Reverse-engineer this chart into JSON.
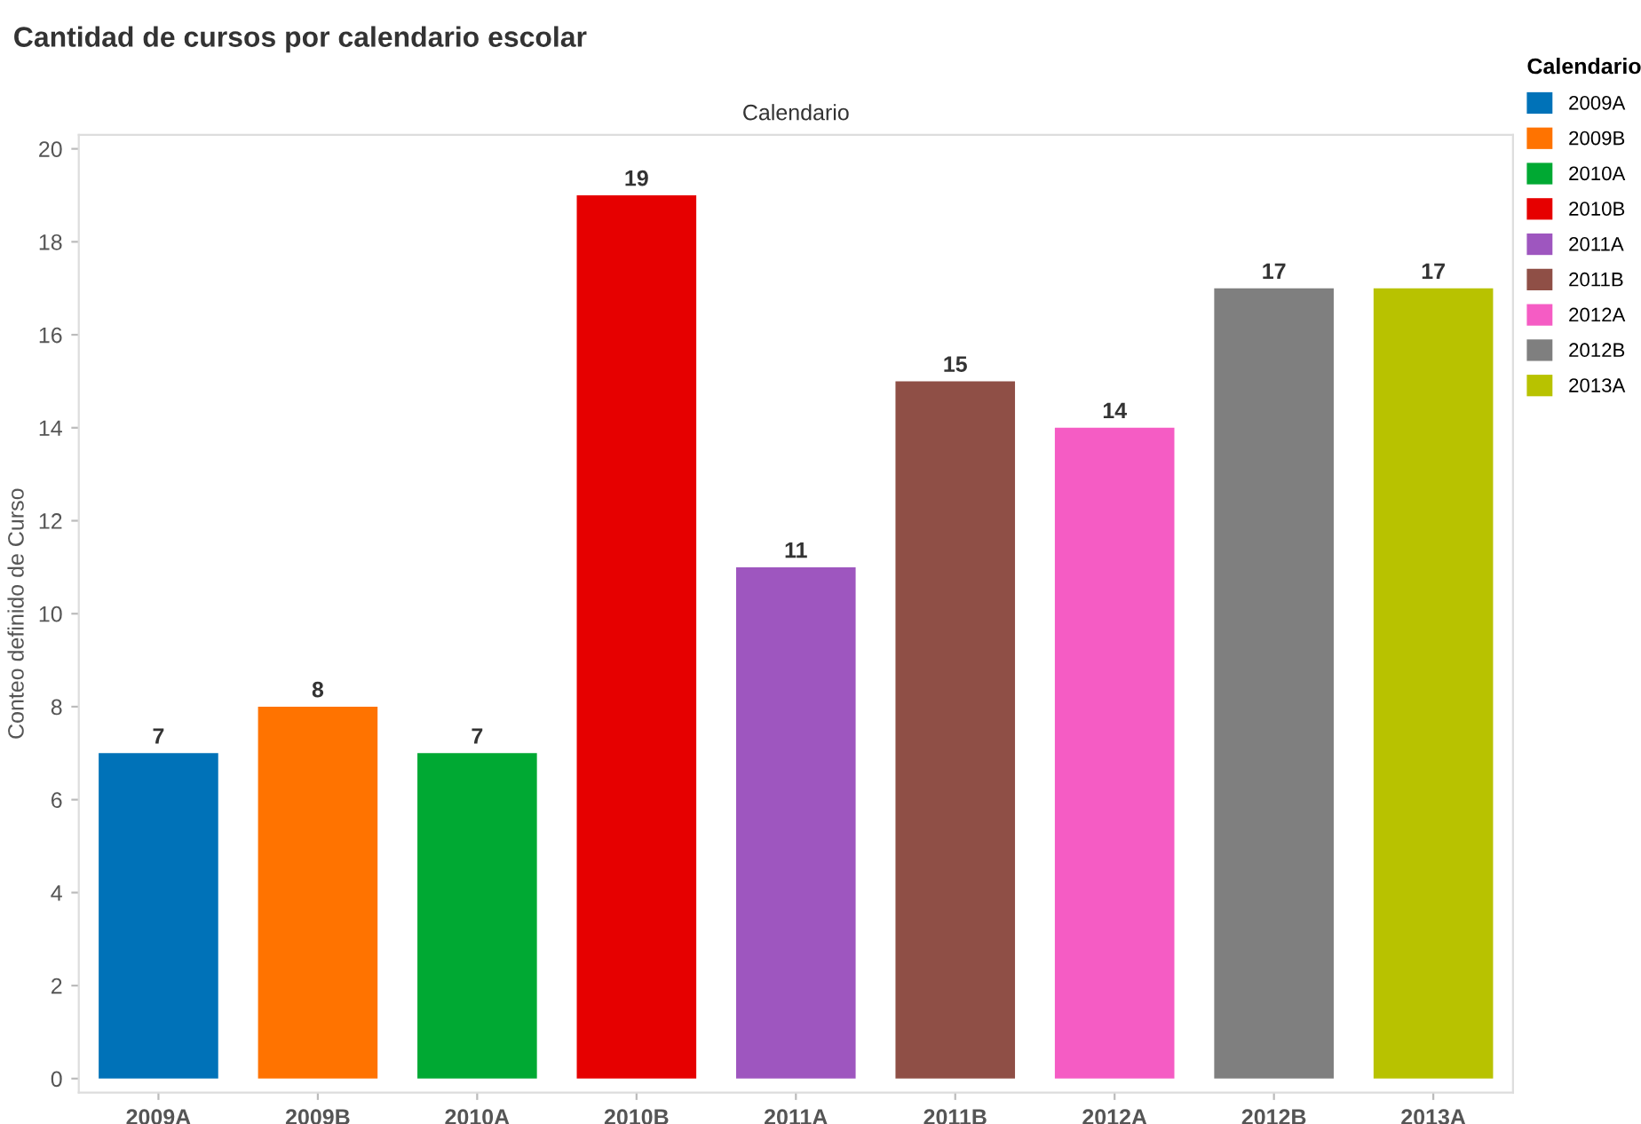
{
  "chart_data": {
    "type": "bar",
    "title": "Cantidad de cursos por calendario escolar",
    "xlabel": "Calendario",
    "ylabel": "Conteo definido de Curso",
    "legend_title": "Calendario",
    "categories": [
      "2009A",
      "2009B",
      "2010A",
      "2010B",
      "2011A",
      "2011B",
      "2012A",
      "2012B",
      "2013A"
    ],
    "series": [
      {
        "name": "2009A",
        "color": "#0072b8",
        "values": [
          7,
          null,
          null,
          null,
          null,
          null,
          null,
          null,
          null
        ]
      },
      {
        "name": "2009B",
        "color": "#ff7300",
        "values": [
          null,
          8,
          null,
          null,
          null,
          null,
          null,
          null,
          null
        ]
      },
      {
        "name": "2010A",
        "color": "#00a933",
        "values": [
          null,
          null,
          7,
          null,
          null,
          null,
          null,
          null,
          null
        ]
      },
      {
        "name": "2010B",
        "color": "#e60000",
        "values": [
          null,
          null,
          null,
          19,
          null,
          null,
          null,
          null,
          null
        ]
      },
      {
        "name": "2011A",
        "color": "#9e56bf",
        "values": [
          null,
          null,
          null,
          null,
          11,
          null,
          null,
          null,
          null
        ]
      },
      {
        "name": "2011B",
        "color": "#8f4f46",
        "values": [
          null,
          null,
          null,
          null,
          null,
          15,
          null,
          null,
          null
        ]
      },
      {
        "name": "2012A",
        "color": "#f55cc4",
        "values": [
          null,
          null,
          null,
          null,
          null,
          null,
          14,
          null,
          null
        ]
      },
      {
        "name": "2012B",
        "color": "#7f7f7f",
        "values": [
          null,
          null,
          null,
          null,
          null,
          null,
          null,
          17,
          null
        ]
      },
      {
        "name": "2013A",
        "color": "#b8c200",
        "values": [
          null,
          null,
          null,
          null,
          null,
          null,
          null,
          null,
          17
        ]
      }
    ],
    "ylim": [
      -0.3,
      20.3
    ],
    "yticks": [
      0,
      2,
      4,
      6,
      8,
      10,
      12,
      14,
      16,
      18,
      20
    ],
    "data_labels": true,
    "grid": false,
    "legend": "right"
  }
}
